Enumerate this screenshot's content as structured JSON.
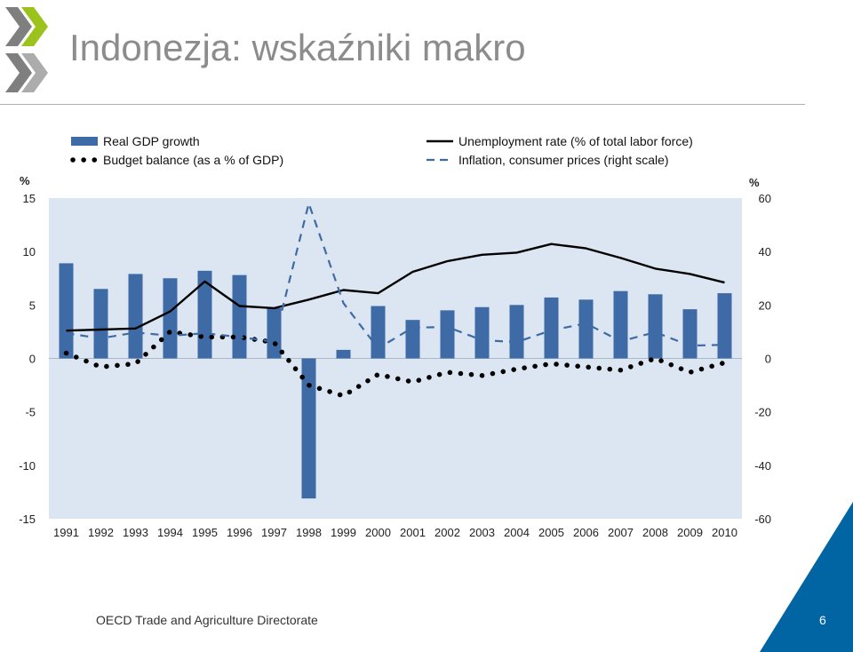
{
  "slide": {
    "title": "Indonezja: wskaźniki makro",
    "footer": "OECD Trade and Agriculture Directorate",
    "page_number": "6"
  },
  "colors": {
    "title": "#8c8c8c",
    "bar": "#3e6aa5",
    "plot_bg": "#dce6f2",
    "inflation": "#3e6aa5",
    "unemployment": "#000000",
    "budget": "#000000",
    "logo_green": "#9bc31c",
    "logo_gray": "#7f7f7f",
    "corner_blue": "#0065a2"
  },
  "chart_data": {
    "type": "bar",
    "categories": [
      "1991",
      "1992",
      "1993",
      "1994",
      "1995",
      "1996",
      "1997",
      "1998",
      "1999",
      "2000",
      "2001",
      "2002",
      "2003",
      "2004",
      "2005",
      "2006",
      "2007",
      "2008",
      "2009",
      "2010"
    ],
    "left_axis": {
      "unit_label": "%",
      "ylim": [
        -15,
        15
      ],
      "ticks": [
        15,
        10,
        5,
        0,
        -5,
        -10,
        -15
      ]
    },
    "right_axis": {
      "unit_label": "%",
      "ylim": [
        -60,
        60
      ],
      "ticks": [
        60,
        40,
        20,
        0,
        -20,
        -40,
        -60
      ]
    },
    "legend_position": "top",
    "series": [
      {
        "name": "Real GDP growth",
        "kind": "bar",
        "axis": "left",
        "values": [
          8.9,
          6.5,
          7.9,
          7.5,
          8.2,
          7.8,
          4.7,
          -13.1,
          0.8,
          4.9,
          3.6,
          4.5,
          4.8,
          5.0,
          5.7,
          5.5,
          6.3,
          6.0,
          4.6,
          6.1
        ]
      },
      {
        "name": "Unemployment rate (% of total labor force)",
        "kind": "line",
        "axis": "left",
        "values": [
          2.6,
          2.7,
          2.8,
          4.4,
          7.2,
          4.9,
          4.7,
          5.5,
          6.4,
          6.1,
          8.1,
          9.1,
          9.7,
          9.9,
          10.7,
          10.3,
          9.4,
          8.4,
          7.9,
          7.1
        ]
      },
      {
        "name": "Budget balance (as a % of GDP)",
        "kind": "dotted",
        "axis": "left",
        "values": [
          0.5,
          -0.8,
          -0.5,
          2.5,
          2.0,
          2.0,
          1.5,
          -2.5,
          -3.5,
          -1.5,
          -2.2,
          -1.3,
          -1.6,
          -1.0,
          -0.5,
          -0.8,
          -1.1,
          0,
          -1.3,
          -0.4
        ]
      },
      {
        "name": "Inflation, consumer prices (right scale)",
        "kind": "dashed",
        "axis": "right",
        "values": [
          9.4,
          7.5,
          9.7,
          8.5,
          9.4,
          8.0,
          6.2,
          58.0,
          20.7,
          3.8,
          11.5,
          11.8,
          6.8,
          6.1,
          10.5,
          13.1,
          6.4,
          9.8,
          4.8,
          5.1
        ]
      }
    ]
  }
}
